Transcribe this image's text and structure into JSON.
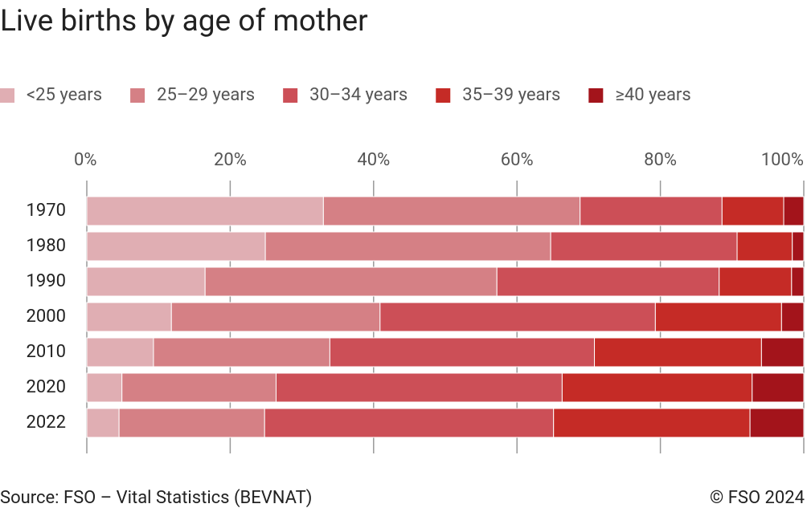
{
  "chart_data": {
    "type": "bar",
    "title": "Live births by age of mother",
    "categories": [
      "1970",
      "1980",
      "1990",
      "2000",
      "2010",
      "2020",
      "2022"
    ],
    "series": [
      {
        "name": "<25 years",
        "color": "#e0aeb3",
        "values": [
          33.0,
          24.9,
          16.5,
          11.8,
          9.3,
          4.9,
          4.5
        ]
      },
      {
        "name": "25–29 years",
        "color": "#d58085",
        "values": [
          35.8,
          39.8,
          40.7,
          29.1,
          24.6,
          21.5,
          20.3
        ]
      },
      {
        "name": "30–34 years",
        "color": "#cc4f57",
        "values": [
          19.8,
          26.0,
          31.0,
          38.4,
          36.9,
          39.9,
          40.3
        ]
      },
      {
        "name": "35–39 years",
        "color": "#c52b26",
        "values": [
          8.6,
          7.7,
          10.1,
          17.6,
          23.3,
          26.5,
          27.4
        ]
      },
      {
        "name": "≥40 years",
        "color": "#a3141b",
        "values": [
          2.8,
          1.6,
          1.7,
          3.1,
          5.9,
          7.2,
          7.5
        ]
      }
    ],
    "xlim": [
      0,
      100
    ],
    "xticks": [
      {
        "value": 0,
        "label": "0%"
      },
      {
        "value": 20,
        "label": "20%"
      },
      {
        "value": 40,
        "label": "40%"
      },
      {
        "value": 60,
        "label": "60%"
      },
      {
        "value": 80,
        "label": "80%"
      },
      {
        "value": 100,
        "label": "100%"
      }
    ],
    "grid": true,
    "source": "Source: FSO – Vital Statistics (BEVNAT)",
    "copyright": "© FSO 2024"
  }
}
